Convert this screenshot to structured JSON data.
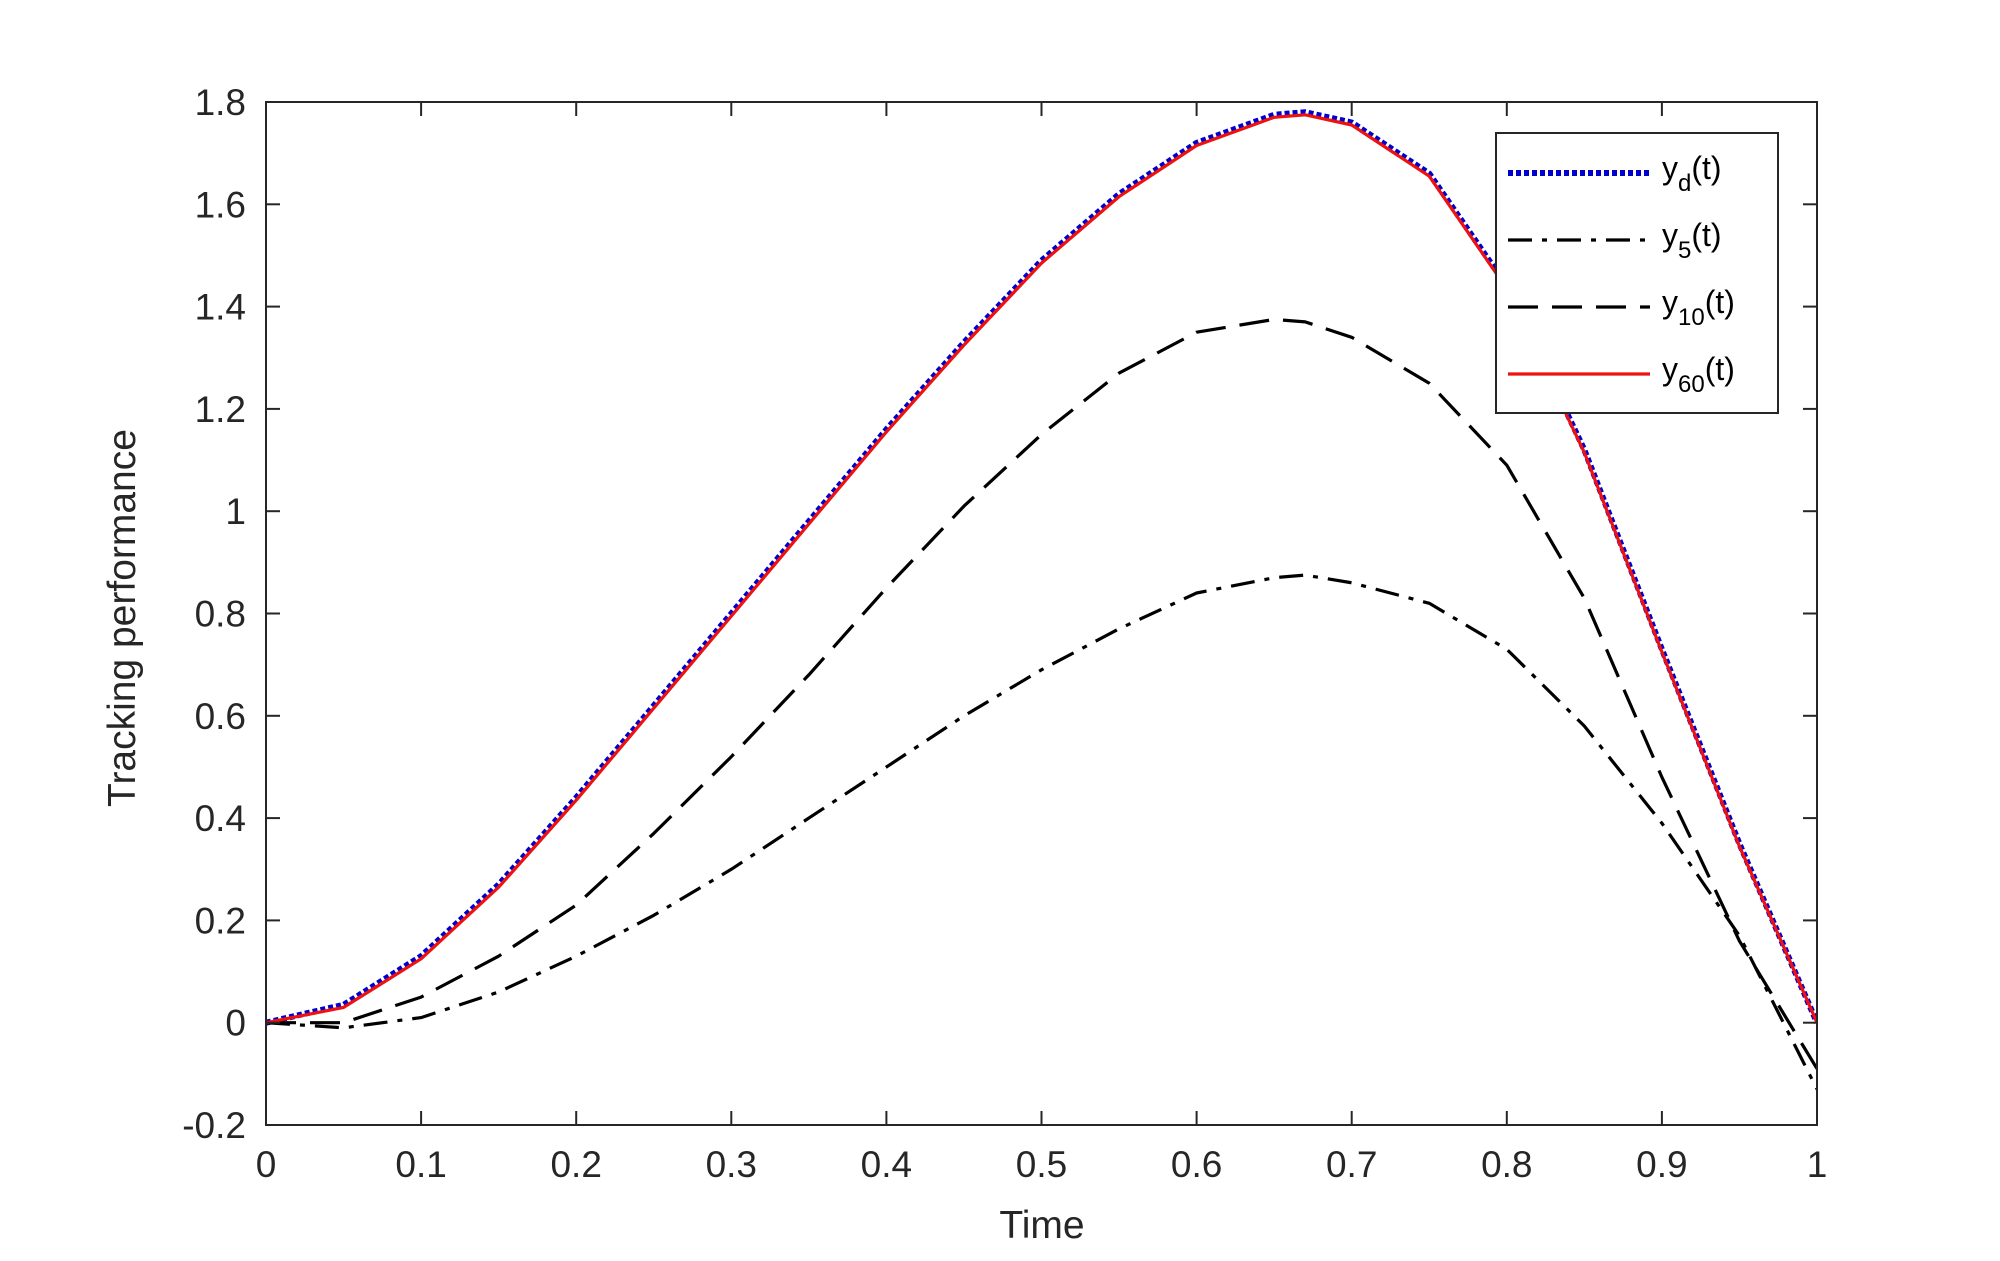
{
  "chart_data": {
    "type": "line",
    "title": "",
    "xlabel": "Time",
    "ylabel": "Tracking performance",
    "xlim": [
      0,
      1
    ],
    "ylim": [
      -0.2,
      1.8
    ],
    "xticks": [
      0,
      0.1,
      0.2,
      0.3,
      0.4,
      0.5,
      0.6,
      0.7,
      0.8,
      0.9,
      1
    ],
    "xtick_labels": [
      "0",
      "0.1",
      "0.2",
      "0.3",
      "0.4",
      "0.5",
      "0.6",
      "0.7",
      "0.8",
      "0.9",
      "1"
    ],
    "yticks": [
      -0.2,
      0,
      0.2,
      0.4,
      0.6,
      0.8,
      1,
      1.2,
      1.4,
      1.6,
      1.8
    ],
    "ytick_labels": [
      "-0.2",
      "0",
      "0.2",
      "0.4",
      "0.6",
      "0.8",
      "1",
      "1.2",
      "1.4",
      "1.6",
      "1.8"
    ],
    "grid": false,
    "legend_position": "top-right",
    "x": [
      0,
      0.05,
      0.1,
      0.15,
      0.2,
      0.25,
      0.3,
      0.35,
      0.4,
      0.45,
      0.5,
      0.55,
      0.6,
      0.65,
      0.67,
      0.7,
      0.75,
      0.8,
      0.85,
      0.9,
      0.95,
      1.0
    ],
    "series": [
      {
        "legend_main": "y",
        "legend_sub": "d",
        "legend_suffix": "(t)",
        "style": "dotted",
        "color": "#0000cc",
        "values": [
          0,
          0.035,
          0.13,
          0.27,
          0.44,
          0.62,
          0.8,
          0.98,
          1.16,
          1.33,
          1.49,
          1.62,
          1.72,
          1.775,
          1.78,
          1.76,
          1.66,
          1.44,
          1.12,
          0.73,
          0.35,
          0
        ]
      },
      {
        "legend_main": "y",
        "legend_sub": "5",
        "legend_suffix": "(t)",
        "style": "dashdot",
        "color": "#000000",
        "values": [
          0,
          -0.01,
          0.01,
          0.06,
          0.13,
          0.21,
          0.3,
          0.4,
          0.5,
          0.6,
          0.69,
          0.77,
          0.84,
          0.87,
          0.875,
          0.86,
          0.82,
          0.73,
          0.58,
          0.39,
          0.17,
          -0.13
        ]
      },
      {
        "legend_main": "y",
        "legend_sub": "10",
        "legend_suffix": "(t)",
        "style": "dashed",
        "color": "#000000",
        "values": [
          0,
          0.0,
          0.05,
          0.13,
          0.23,
          0.37,
          0.52,
          0.68,
          0.85,
          1.01,
          1.15,
          1.27,
          1.35,
          1.375,
          1.37,
          1.34,
          1.25,
          1.09,
          0.83,
          0.48,
          0.16,
          -0.09
        ]
      },
      {
        "legend_main": "y",
        "legend_sub": "60",
        "legend_suffix": "(t)",
        "style": "solid",
        "color": "#ee1111",
        "values": [
          0,
          0.03,
          0.125,
          0.265,
          0.435,
          0.615,
          0.795,
          0.975,
          1.155,
          1.325,
          1.485,
          1.615,
          1.715,
          1.77,
          1.775,
          1.755,
          1.655,
          1.435,
          1.115,
          0.725,
          0.345,
          0
        ]
      }
    ]
  }
}
